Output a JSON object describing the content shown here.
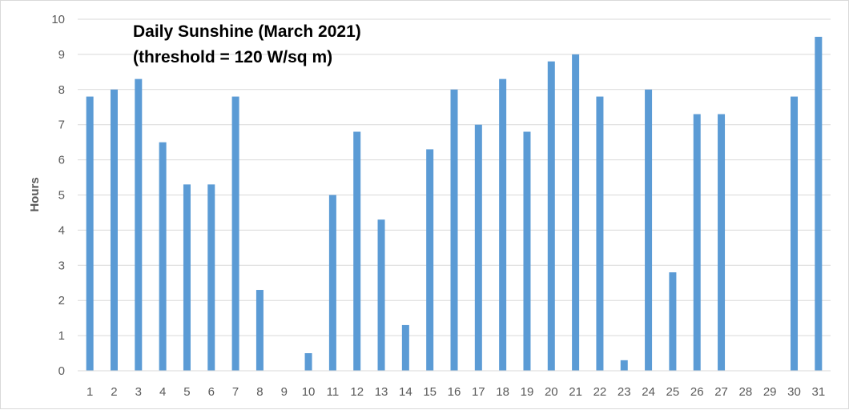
{
  "chart_data": {
    "type": "bar",
    "title": "Daily Sunshine (March 2021)",
    "subtitle": "(threshold = 120 W/sq m)",
    "xlabel": "",
    "ylabel": "Hours",
    "categories": [
      "1",
      "2",
      "3",
      "4",
      "5",
      "6",
      "7",
      "8",
      "9",
      "10",
      "11",
      "12",
      "13",
      "14",
      "15",
      "16",
      "17",
      "18",
      "19",
      "20",
      "21",
      "22",
      "23",
      "24",
      "25",
      "26",
      "27",
      "28",
      "29",
      "30",
      "31"
    ],
    "values": [
      7.8,
      8.0,
      8.3,
      6.5,
      5.3,
      5.3,
      7.8,
      2.3,
      0,
      0.5,
      5.0,
      6.8,
      4.3,
      1.3,
      6.3,
      8.0,
      7.0,
      8.3,
      6.8,
      8.8,
      9.0,
      7.8,
      0.3,
      8.0,
      2.8,
      7.3,
      7.3,
      0,
      0,
      7.8,
      9.5
    ],
    "ylim": [
      0,
      10
    ],
    "yticks": [
      "0",
      "1",
      "2",
      "3",
      "4",
      "5",
      "6",
      "7",
      "8",
      "9",
      "10"
    ],
    "grid": true,
    "legend": "none",
    "colors": {
      "bar": "#5b9bd5",
      "grid": "#d9d9d9",
      "axis": "#d9d9d9",
      "tick_text": "#595959",
      "title": "#000000"
    }
  }
}
